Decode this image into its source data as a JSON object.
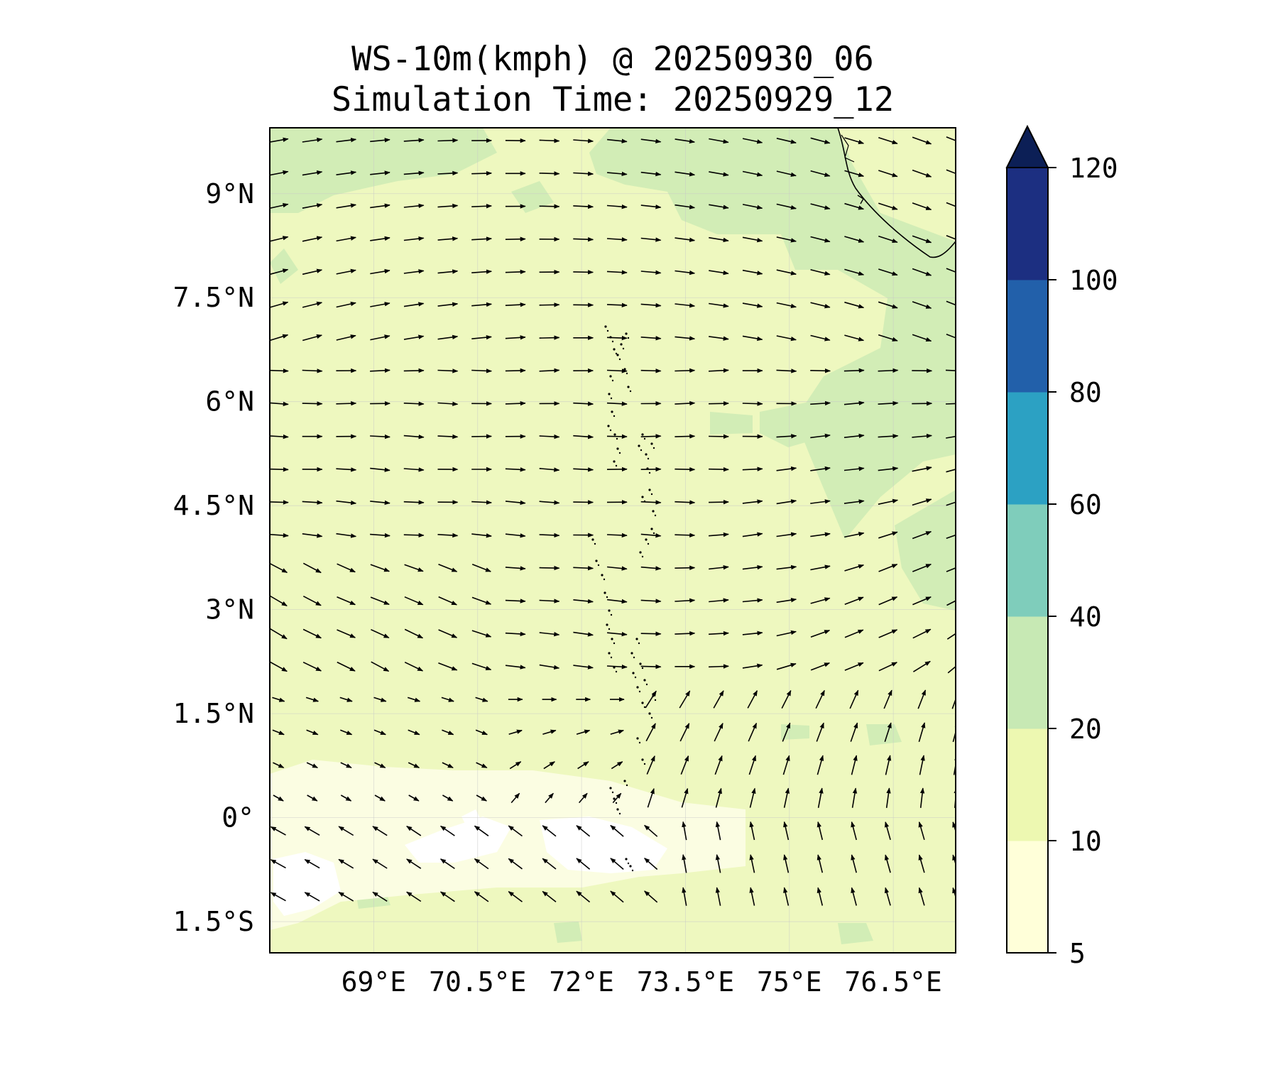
{
  "title_line1": "WS-10m(kmph) @ 20250930_06",
  "title_line2": "Simulation Time: 20250929_12",
  "map": {
    "lon_range": [
      67.5,
      77.4
    ],
    "lat_range": [
      -1.95,
      9.95
    ],
    "lat_ticks": [
      {
        "value": 9,
        "label": "9°N"
      },
      {
        "value": 7.5,
        "label": "7.5°N"
      },
      {
        "value": 6,
        "label": "6°N"
      },
      {
        "value": 4.5,
        "label": "4.5°N"
      },
      {
        "value": 3,
        "label": "3°N"
      },
      {
        "value": 1.5,
        "label": "1.5°N"
      },
      {
        "value": 0,
        "label": "0°"
      },
      {
        "value": -1.5,
        "label": "1.5°S"
      }
    ],
    "lon_ticks": [
      {
        "value": 69,
        "label": "69°E"
      },
      {
        "value": 70.5,
        "label": "70.5°E"
      },
      {
        "value": 72,
        "label": "72°E"
      },
      {
        "value": 73.5,
        "label": "73.5°E"
      },
      {
        "value": 75,
        "label": "75°E"
      },
      {
        "value": 76.5,
        "label": "76.5°E"
      }
    ],
    "gridlines": true,
    "vector_field": "wind-10m"
  },
  "colorbar": {
    "levels": [
      5,
      10,
      20,
      40,
      60,
      80,
      100,
      120
    ],
    "labels": [
      "5",
      "10",
      "20",
      "40",
      "60",
      "80",
      "100",
      "120"
    ],
    "colors": [
      "#ffffd9",
      "#edf8b1",
      "#c7e9b4",
      "#7fcdbb",
      "#2ca1c3",
      "#2260aa",
      "#1c2f81",
      "#0c1f56"
    ],
    "extend": "max"
  },
  "colors": {
    "field_base": "#eef8bf",
    "field_band_20_40": "#d2edb6",
    "field_below_10": "#fbfde2",
    "field_calm": "#ffffff"
  }
}
